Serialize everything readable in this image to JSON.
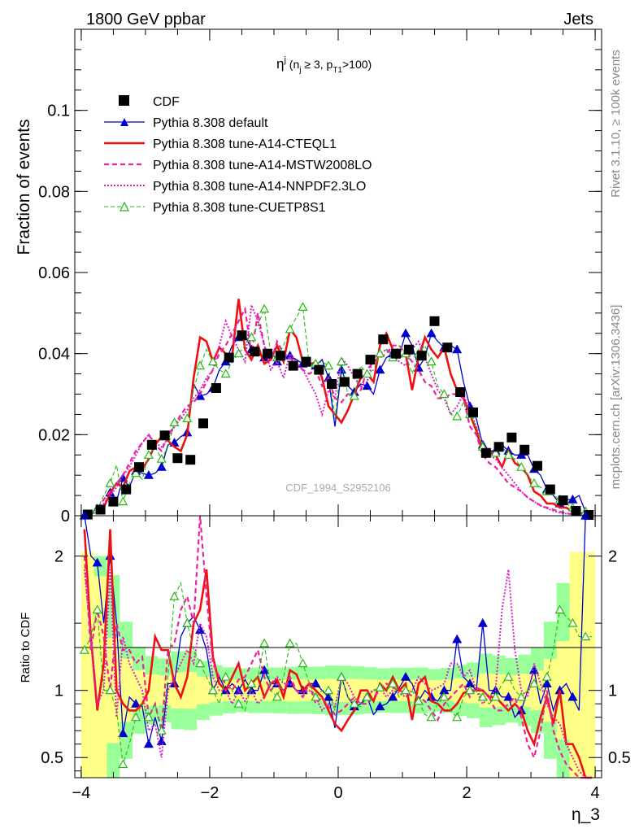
{
  "header": {
    "energy": "1800 GeV ppbar",
    "process": "Jets"
  },
  "side": {
    "rivet": "Rivet 3.1.10, ≥ 100k events",
    "mcplots": "mcplots.cern.ch [arXiv:1306.3436]"
  },
  "chart_data": {
    "type": "line",
    "title": "η^j (n_j ≥ 3, p_T1>100)",
    "xlabel": "η_3",
    "ylabel": "Fraction of events",
    "ratio_ylabel": "Ratio to CDF",
    "watermark": "CDF_1994_S2952106",
    "xlim": [
      -4.1,
      4.1
    ],
    "ylim": [
      0,
      0.12
    ],
    "ratio_ylim": [
      0.35,
      2.3
    ],
    "x_ticks": [
      -4,
      -2,
      0,
      2,
      4
    ],
    "x_tick_labels": [
      "−4",
      "−2",
      "0",
      "2",
      "4"
    ],
    "y_ticks": [
      0,
      0.02,
      0.04,
      0.06,
      0.08,
      0.1
    ],
    "y_tick_labels": [
      "0",
      "0.02",
      "0.04",
      "0.06",
      "0.08",
      "0.1"
    ],
    "ratio_ticks": [
      0.5,
      1,
      2
    ],
    "ratio_tick_labels": [
      "0.5",
      "1",
      "2"
    ],
    "legend": [
      "CDF",
      "Pythia 8.308 default",
      "Pythia 8.308 tune-A14-CTEQL1",
      "Pythia 8.308 tune-A14-MSTW2008LO",
      "Pythia 8.308 tune-A14-NNPDF2.3LO",
      "Pythia 8.308 tune-CUETP8S1"
    ],
    "colors": {
      "data": "#000000",
      "default": "#0000cc",
      "cteql1": "#ee1111",
      "mstw": "#ee2299",
      "nnpdf": "#dd22cc",
      "cuetp8s1": "#22bb11",
      "band_inner": "#ffff88",
      "band_outer": "#99ff99"
    },
    "data_points": {
      "x": [
        -3.9,
        -3.7,
        -3.5,
        -3.3,
        -3.1,
        -2.9,
        -2.7,
        -2.5,
        -2.3,
        -2.1,
        -1.9,
        -1.7,
        -1.5,
        -1.3,
        -1.1,
        -0.9,
        -0.7,
        -0.5,
        -0.3,
        -0.1,
        0.1,
        0.3,
        0.5,
        0.7,
        0.9,
        1.1,
        1.3,
        1.5,
        1.7,
        1.9,
        2.1,
        2.3,
        2.5,
        2.7,
        2.9,
        3.1,
        3.3,
        3.5,
        3.7,
        3.9
      ],
      "y": [
        0.0003,
        0.0015,
        0.0035,
        0.0065,
        0.012,
        0.0175,
        0.0198,
        0.0142,
        0.0138,
        0.0228,
        0.0315,
        0.039,
        0.0445,
        0.0405,
        0.04,
        0.0395,
        0.037,
        0.038,
        0.036,
        0.0325,
        0.033,
        0.035,
        0.0385,
        0.0435,
        0.04,
        0.041,
        0.0395,
        0.048,
        0.0415,
        0.0305,
        0.0255,
        0.0155,
        0.017,
        0.0193,
        0.0163,
        0.0123,
        0.0065,
        0.0038,
        0.0012,
        0.0002
      ]
    },
    "model_x": [
      -3.95,
      -3.85,
      -3.75,
      -3.65,
      -3.55,
      -3.45,
      -3.35,
      -3.25,
      -3.15,
      -3.05,
      -2.95,
      -2.85,
      -2.75,
      -2.65,
      -2.55,
      -2.45,
      -2.35,
      -2.25,
      -2.15,
      -2.05,
      -1.95,
      -1.85,
      -1.75,
      -1.65,
      -1.55,
      -1.45,
      -1.35,
      -1.25,
      -1.15,
      -1.05,
      -0.95,
      -0.85,
      -0.75,
      -0.65,
      -0.55,
      -0.45,
      -0.35,
      -0.25,
      -0.15,
      -0.05,
      0.05,
      0.15,
      0.25,
      0.35,
      0.45,
      0.55,
      0.65,
      0.75,
      0.85,
      0.95,
      1.05,
      1.15,
      1.25,
      1.35,
      1.45,
      1.55,
      1.65,
      1.75,
      1.85,
      1.95,
      2.05,
      2.15,
      2.25,
      2.35,
      2.45,
      2.55,
      2.65,
      2.75,
      2.85,
      2.95,
      3.05,
      3.15,
      3.25,
      3.35,
      3.45,
      3.55,
      3.65,
      3.75,
      3.85,
      3.95
    ],
    "series": [
      {
        "name": "Pythia 8.308 default",
        "style": "solid",
        "marker": "triangle-filled",
        "values": [
          0.0001,
          0.0003,
          0.0017,
          0.0022,
          0.0057,
          0.0037,
          0.0093,
          0.0071,
          0.011,
          0.0105,
          0.01,
          0.0105,
          0.012,
          0.0175,
          0.018,
          0.0195,
          0.0205,
          0.0325,
          0.0295,
          0.03,
          0.0315,
          0.036,
          0.038,
          0.042,
          0.044,
          0.0445,
          0.041,
          0.04,
          0.039,
          0.041,
          0.038,
          0.039,
          0.0395,
          0.0385,
          0.0375,
          0.038,
          0.037,
          0.0385,
          0.034,
          0.022,
          0.036,
          0.032,
          0.0305,
          0.0325,
          0.032,
          0.03,
          0.036,
          0.039,
          0.04,
          0.0395,
          0.045,
          0.042,
          0.0365,
          0.039,
          0.045,
          0.043,
          0.0415,
          0.042,
          0.041,
          0.033,
          0.027,
          0.024,
          0.0175,
          0.016,
          0.016,
          0.0175,
          0.016,
          0.015,
          0.015,
          0.015,
          0.0115,
          0.01,
          0.0065,
          0.005,
          0.003,
          0.004,
          0.004,
          0.005,
          0.001,
          0.0002
        ]
      },
      {
        "name": "Pythia 8.308 tune-A14-CTEQL1",
        "style": "solid-thick",
        "marker": "none",
        "values": [
          0.0001,
          0.0003,
          0.0015,
          0.002,
          0.0057,
          0.008,
          0.007,
          0.011,
          0.012,
          0.0115,
          0.014,
          0.0175,
          0.0195,
          0.0185,
          0.017,
          0.016,
          0.02,
          0.034,
          0.044,
          0.043,
          0.038,
          0.0415,
          0.04,
          0.0395,
          0.0535,
          0.041,
          0.0385,
          0.042,
          0.0375,
          0.0385,
          0.042,
          0.038,
          0.046,
          0.044,
          0.038,
          0.037,
          0.038,
          0.034,
          0.027,
          0.025,
          0.023,
          0.026,
          0.03,
          0.034,
          0.035,
          0.033,
          0.042,
          0.045,
          0.041,
          0.039,
          0.04,
          0.031,
          0.039,
          0.044,
          0.041,
          0.039,
          0.0415,
          0.035,
          0.031,
          0.029,
          0.025,
          0.021,
          0.0155,
          0.016,
          0.015,
          0.012,
          0.016,
          0.013,
          0.012,
          0.01,
          0.006,
          0.005,
          0.003,
          0.003,
          0.002,
          0.002,
          0.001,
          0.0008,
          0.0003,
          0.0001
        ]
      },
      {
        "name": "Pythia 8.308 tune-A14-MSTW2008LO",
        "style": "dashed",
        "marker": "none",
        "values": [
          0.0001,
          0.0003,
          0.0014,
          0.004,
          0.006,
          0.008,
          0.01,
          0.013,
          0.016,
          0.018,
          0.02,
          0.0175,
          0.016,
          0.02,
          0.022,
          0.025,
          0.027,
          0.028,
          0.03,
          0.033,
          0.036,
          0.04,
          0.042,
          0.045,
          0.048,
          0.051,
          0.04,
          0.05,
          0.042,
          0.038,
          0.043,
          0.04,
          0.039,
          0.037,
          0.036,
          0.035,
          0.036,
          0.032,
          0.034,
          0.029,
          0.028,
          0.03,
          0.03,
          0.031,
          0.036,
          0.038,
          0.039,
          0.04,
          0.042,
          0.042,
          0.04,
          0.038,
          0.036,
          0.033,
          0.032,
          0.029,
          0.029,
          0.03,
          0.03,
          0.029,
          0.022,
          0.02,
          0.015,
          0.013,
          0.012,
          0.01,
          0.008,
          0.007,
          0.006,
          0.0045,
          0.0035,
          0.0025,
          0.002,
          0.0015,
          0.001,
          0.0006,
          0.0004,
          0.0002,
          0.0001,
          0.0001
        ]
      },
      {
        "name": "Pythia 8.308 tune-A14-NNPDF2.3LO",
        "style": "dotted",
        "marker": "none",
        "values": [
          0.0001,
          0.0002,
          0.0012,
          0.003,
          0.005,
          0.007,
          0.01,
          0.012,
          0.015,
          0.018,
          0.02,
          0.018,
          0.017,
          0.019,
          0.022,
          0.024,
          0.026,
          0.029,
          0.031,
          0.034,
          0.036,
          0.042,
          0.048,
          0.044,
          0.041,
          0.038,
          0.052,
          0.048,
          0.042,
          0.036,
          0.038,
          0.034,
          0.04,
          0.038,
          0.036,
          0.033,
          0.03,
          0.025,
          0.031,
          0.029,
          0.039,
          0.037,
          0.034,
          0.032,
          0.033,
          0.039,
          0.04,
          0.041,
          0.04,
          0.038,
          0.037,
          0.041,
          0.043,
          0.039,
          0.035,
          0.031,
          0.029,
          0.025,
          0.027,
          0.03,
          0.026,
          0.022,
          0.018,
          0.015,
          0.014,
          0.012,
          0.01,
          0.008,
          0.006,
          0.0045,
          0.0035,
          0.0025,
          0.0018,
          0.0012,
          0.0008,
          0.0005,
          0.0003,
          0.0002,
          0.0001,
          0.0001
        ]
      },
      {
        "name": "Pythia 8.308 tune-CUETP8S1",
        "style": "dashed-thin",
        "marker": "triangle-open",
        "values": [
          0.0001,
          0.0003,
          0.0015,
          0.005,
          0.008,
          0.0125,
          0.0035,
          0.008,
          0.0105,
          0.009,
          0.015,
          0.017,
          0.014,
          0.017,
          0.023,
          0.024,
          0.024,
          0.031,
          0.037,
          0.041,
          0.038,
          0.036,
          0.035,
          0.038,
          0.04,
          0.042,
          0.044,
          0.047,
          0.051,
          0.04,
          0.039,
          0.042,
          0.046,
          0.049,
          0.0515,
          0.037,
          0.0375,
          0.038,
          0.037,
          0.024,
          0.038,
          0.03,
          0.0295,
          0.037,
          0.035,
          0.036,
          0.04,
          0.041,
          0.039,
          0.042,
          0.04,
          0.035,
          0.04,
          0.042,
          0.038,
          0.032,
          0.03,
          0.025,
          0.0245,
          0.028,
          0.025,
          0.022,
          0.017,
          0.016,
          0.0155,
          0.017,
          0.015,
          0.014,
          0.012,
          0.01,
          0.008,
          0.007,
          0.006,
          0.005,
          0.004,
          0.003,
          0.002,
          0.0015,
          0.001,
          0.0005
        ]
      }
    ],
    "ratio_series": [
      {
        "name": "Pythia 8.308 default",
        "values": [
          2.3,
          2.0,
          1.95,
          1.5,
          2.0,
          1.5,
          0.68,
          0.95,
          0.9,
          0.88,
          0.6,
          0.8,
          0.62,
          1.05,
          1.05,
          1.4,
          1.5,
          1.55,
          1.45,
          1.3,
          1.0,
          1.1,
          1.0,
          1.05,
          1.0,
          1.08,
          1.0,
          1.0,
          1.15,
          1.05,
          1.05,
          1.0,
          1.05,
          1.0,
          1.0,
          1.05,
          1.05,
          1.0,
          0.95,
          0.72,
          1.1,
          0.95,
          0.88,
          0.9,
          0.95,
          0.82,
          0.88,
          0.9,
          0.95,
          1.02,
          1.1,
          1.05,
          0.92,
          1.0,
          0.95,
          0.92,
          1.0,
          1.0,
          1.38,
          1.1,
          1.05,
          1.0,
          1.5,
          1.0,
          1.0,
          0.95,
          0.95,
          0.8,
          0.85,
          1.0,
          1.15,
          0.9,
          1.05,
          0.85,
          1.0,
          1.05,
          0.95,
          0.85,
          2.3,
          2.3
        ]
      },
      {
        "name": "Pythia 8.308 tune-A14-CTEQL1",
        "values": [
          2.2,
          1.4,
          0.85,
          1.2,
          2.2,
          1.0,
          0.9,
          0.85,
          0.85,
          0.9,
          1.0,
          1.4,
          1.3,
          1.3,
          1.05,
          0.95,
          1.1,
          1.5,
          1.6,
          1.9,
          1.25,
          1.05,
          1.0,
          1.1,
          1.2,
          1.0,
          1.05,
          1.1,
          0.95,
          1.05,
          1.08,
          0.95,
          1.15,
          1.12,
          1.0,
          1.05,
          1.0,
          0.95,
          0.85,
          0.75,
          0.7,
          0.78,
          0.85,
          1.0,
          1.0,
          0.92,
          1.05,
          1.0,
          1.1,
          1.0,
          1.05,
          0.78,
          1.05,
          1.1,
          0.92,
          0.9,
          0.85,
          0.85,
          0.9,
          0.98,
          1.0,
          1.0,
          1.0,
          0.95,
          0.95,
          0.9,
          0.85,
          0.9,
          0.85,
          0.7,
          0.6,
          0.8,
          0.95,
          0.75,
          1.0,
          0.6,
          0.6,
          0.5,
          0.3,
          0.3
        ]
      },
      {
        "name": "Pythia 8.308 tune-A14-MSTW2008LO",
        "values": [
          2.0,
          1.3,
          1.6,
          1.4,
          1.0,
          1.5,
          1.3,
          1.3,
          1.2,
          1.25,
          0.8,
          0.9,
          0.7,
          1.3,
          1.35,
          1.6,
          1.7,
          1.5,
          2.4,
          1.7,
          1.2,
          1.1,
          1.05,
          1.0,
          1.08,
          1.1,
          1.2,
          1.3,
          1.1,
          1.0,
          1.05,
          1.0,
          1.1,
          1.0,
          0.95,
          1.05,
          0.9,
          0.95,
          0.88,
          0.82,
          0.85,
          0.9,
          0.95,
          0.9,
          0.9,
          0.95,
          1.0,
          1.05,
          1.02,
          1.0,
          0.98,
          0.96,
          0.95,
          0.92,
          0.85,
          0.78,
          0.9,
          0.95,
          1.0,
          1.05,
          0.95,
          1.02,
          1.0,
          0.95,
          0.85,
          0.85,
          0.9,
          0.95,
          0.8,
          0.6,
          0.5,
          0.7,
          1.0,
          0.7,
          0.55,
          0.45,
          0.4,
          0.35,
          0.3,
          0.3
        ]
      },
      {
        "name": "Pythia 8.308 tune-A14-NNPDF2.3LO",
        "values": [
          1.9,
          1.4,
          0.9,
          1.0,
          1.9,
          0.8,
          1.4,
          1.2,
          1.1,
          1.0,
          0.7,
          0.75,
          0.5,
          1.0,
          1.1,
          1.2,
          1.3,
          1.2,
          1.5,
          1.4,
          1.1,
          1.0,
          1.0,
          0.9,
          1.0,
          0.92,
          1.0,
          0.9,
          0.95,
          1.05,
          1.1,
          1.05,
          1.05,
          1.0,
          0.98,
          1.0,
          0.95,
          0.85,
          0.9,
          0.88,
          1.1,
          1.05,
          0.95,
          0.9,
          0.98,
          1.0,
          1.02,
          0.95,
          1.0,
          0.98,
          0.95,
          1.0,
          1.1,
          1.05,
          1.0,
          1.02,
          1.05,
          1.2,
          1.2,
          1.1,
          1.15,
          1.0,
          0.9,
          0.95,
          1.0,
          1.6,
          1.9,
          1.3,
          1.0,
          0.95,
          1.2,
          1.05,
          0.9,
          0.8,
          0.75,
          0.6,
          0.5,
          0.4,
          0.3,
          0.3
        ]
      },
      {
        "name": "Pythia 8.308 tune-CUETP8S1",
        "values": [
          1.3,
          1.4,
          1.6,
          1.0,
          1.0,
          0.85,
          0.45,
          0.6,
          0.8,
          0.9,
          0.8,
          0.9,
          0.7,
          1.1,
          1.7,
          1.8,
          1.5,
          1.3,
          1.2,
          1.1,
          1.0,
          0.9,
          1.1,
          1.0,
          0.9,
          0.85,
          1.05,
          1.1,
          1.35,
          1.0,
          0.95,
          1.1,
          1.35,
          1.35,
          1.2,
          1.05,
          0.95,
          1.0,
          1.0,
          0.85,
          1.1,
          0.95,
          0.9,
          0.88,
          0.95,
          1.0,
          1.02,
          1.0,
          1.05,
          0.95,
          1.0,
          1.0,
          0.92,
          0.82,
          0.8,
          0.9,
          0.95,
          0.85,
          0.8,
          0.95,
          1.0,
          1.0,
          0.95,
          0.9,
          0.95,
          1.05,
          1.1,
          1.0,
          0.95,
          1.0,
          1.05,
          1.0,
          1.1,
          1.3,
          1.6,
          1.55,
          1.5,
          1.4,
          1.4,
          1.4
        ]
      }
    ]
  }
}
